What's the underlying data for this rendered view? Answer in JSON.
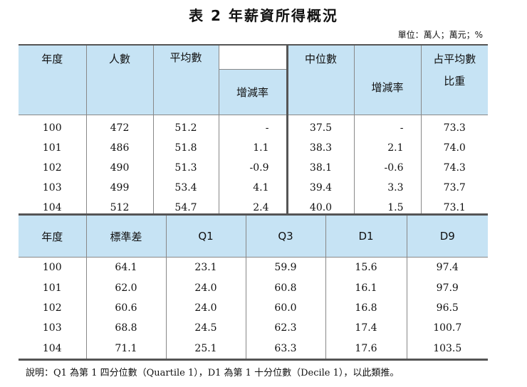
{
  "title": "表 2 年薪資所得概況",
  "unit": "單位：萬人；萬元；%",
  "table1": {
    "headers": {
      "year": "年度",
      "count": "人數",
      "mean": "平均數",
      "mean_change": "增減率",
      "median": "中位數",
      "median_change": "增減率",
      "ratio_line1": "占平均數",
      "ratio_line2": "比重"
    },
    "rows": [
      [
        "100",
        "472",
        "51.2",
        "-",
        "37.5",
        "-",
        "73.3"
      ],
      [
        "101",
        "486",
        "51.8",
        "1.1",
        "38.3",
        "2.1",
        "74.0"
      ],
      [
        "102",
        "490",
        "51.3",
        "-0.9",
        "38.1",
        "-0.6",
        "74.3"
      ],
      [
        "103",
        "499",
        "53.4",
        "4.1",
        "39.4",
        "3.3",
        "73.7"
      ],
      [
        "104",
        "512",
        "54.7",
        "2.4",
        "40.0",
        "1.5",
        "73.1"
      ]
    ]
  },
  "table2": {
    "headers": [
      "年度",
      "標準差",
      "Q1",
      "Q3",
      "D1",
      "D9"
    ],
    "rows": [
      [
        "100",
        "64.1",
        "23.1",
        "59.9",
        "15.6",
        "97.4"
      ],
      [
        "101",
        "62.0",
        "24.0",
        "60.8",
        "16.1",
        "97.9"
      ],
      [
        "102",
        "60.6",
        "24.0",
        "60.0",
        "16.8",
        "96.5"
      ],
      [
        "103",
        "68.8",
        "24.5",
        "62.3",
        "17.4",
        "100.7"
      ],
      [
        "104",
        "71.1",
        "25.1",
        "63.3",
        "17.6",
        "103.5"
      ]
    ]
  },
  "note": "說明：Q1 為第 1 四分位數（Quartile 1），D1 為第 1 十分位數（Decile 1），以此類推。"
}
